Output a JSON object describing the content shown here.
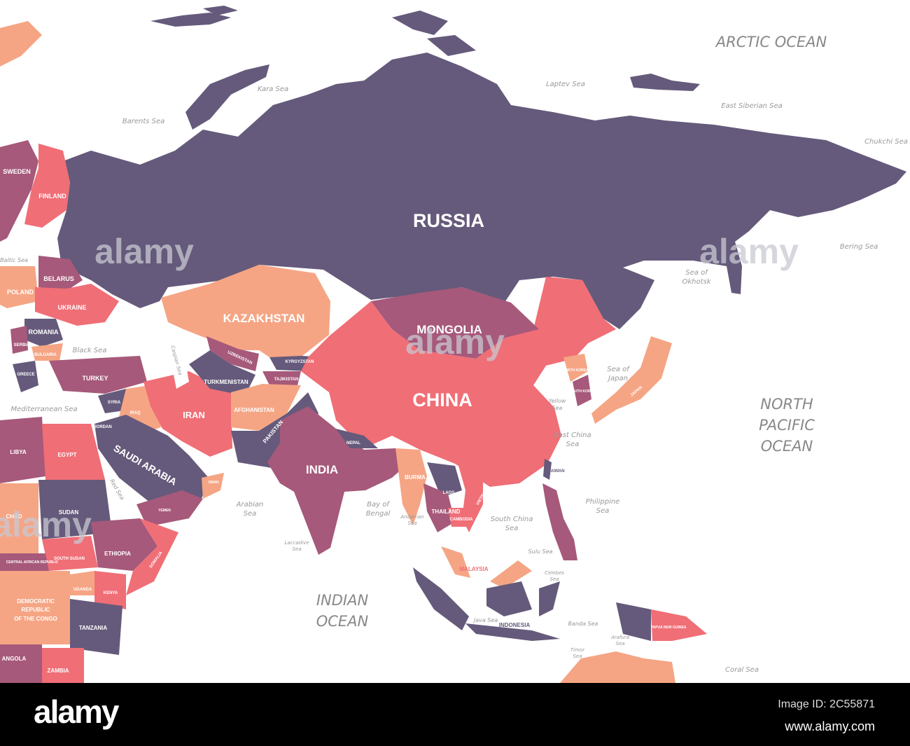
{
  "map": {
    "colors": {
      "dark_purple": "#655a7b",
      "mauve": "#a6597a",
      "salmon": "#f06e76",
      "peach": "#f5a584",
      "water": "#ffffff"
    },
    "countries": {
      "russia": "RUSSIA",
      "kazakhstan": "KAZAKHSTAN",
      "mongolia": "MONGOLIA",
      "china": "CHINA",
      "india": "INDIA",
      "iran": "IRAN",
      "saudi_arabia": "SAUDI ARABIA",
      "turkey": "TURKEY",
      "sweden": "SWEDEN",
      "finland": "FINLAND",
      "belarus": "BELARUS",
      "poland": "POLAND",
      "ukraine": "UKRAINE",
      "romania": "ROMANIA",
      "bulgaria": "BULGARIA",
      "serbia": "SERBIA",
      "greece": "GREECE",
      "syria": "SYRIA",
      "iraq": "IRAQ",
      "jordan": "JORDAN",
      "uzbekistan": "UZBEKISTAN",
      "turkmenistan": "TURKMENISTAN",
      "kyrgyzstan": "KYRGYZSTAN",
      "tajikistan": "TAJIKISTAN",
      "afghanistan": "AFGHANISTAN",
      "pakistan": "PAKISTAN",
      "nepal": "NEPAL",
      "burma": "BURMA",
      "laos": "LAOS",
      "thailand": "THAILAND",
      "vietnam": "VIETNAM",
      "cambodia": "CAMBODIA",
      "malaysia": "MALAYSIA",
      "indonesia": "INDONESIA",
      "philippines": "PHILIPPINES",
      "taiwan": "TAIWAN",
      "japan": "JAPAN",
      "north_korea": "NORTH KOREA",
      "south_korea": "SOUTH KOREA",
      "papua_new_guinea": "PAPUA NEW GUINEA",
      "libya": "LIBYA",
      "egypt": "EGYPT",
      "sudan": "SUDAN",
      "chad": "CHAD",
      "south_sudan": "SOUTH SUDAN",
      "central_african_republic": "CENTRAL AFRICAN REPUBLIC",
      "ethiopia": "ETHIOPIA",
      "somalia": "SOMALIA",
      "uganda": "UGANDA",
      "kenya": "KENYA",
      "drc_line1": "DEMOCRATIC",
      "drc_line2": "REPUBLIC",
      "drc_line3": "OF THE CONGO",
      "tanzania": "TANZANIA",
      "angola": "ANGOLA",
      "zambia": "ZAMBIA",
      "yemen": "YEMEN",
      "oman": "OMAN"
    },
    "seas": {
      "arctic_ocean": "ARCTIC OCEAN",
      "kara_sea": "Kara Sea",
      "laptev_sea": "Laptev Sea",
      "barents_sea": "Barents Sea",
      "east_siberian_sea": "East Siberian Sea",
      "chukchi_sea": "Chukchi Sea",
      "bering_sea": "Bering Sea",
      "sea_of_okhotsk_1": "Sea of",
      "sea_of_okhotsk_2": "Okhotsk",
      "sea_of_japan_1": "Sea of",
      "sea_of_japan_2": "Japan",
      "north_pacific_1": "NORTH",
      "north_pacific_2": "PACIFIC",
      "north_pacific_3": "OCEAN",
      "baltic_sea": "Baltic Sea",
      "black_sea": "Black Sea",
      "caspian_sea": "Caspian Sea",
      "mediterranean_sea": "Mediterranean Sea",
      "red_sea": "Red Sea",
      "arabian_sea_1": "Arabian",
      "arabian_sea_2": "Sea",
      "bay_of_bengal_1": "Bay of",
      "bay_of_bengal_2": "Bengal",
      "yellow_sea_1": "Yellow",
      "yellow_sea_2": "Sea",
      "east_china_sea_1": "East China",
      "east_china_sea_2": "Sea",
      "philippine_sea_1": "Philippine",
      "philippine_sea_2": "Sea",
      "south_china_sea_1": "South China",
      "south_china_sea_2": "Sea",
      "andaman_sea_1": "Andaman",
      "andaman_sea_2": "Sea",
      "laccadive_sea_1": "Laccadive",
      "laccadive_sea_2": "Sea",
      "sulu_sea": "Sulu Sea",
      "celebes_sea_1": "Celebes",
      "celebes_sea_2": "Sea",
      "java_sea": "Java Sea",
      "banda_sea": "Banda Sea",
      "arafura_sea_1": "Arafura",
      "arafura_sea_2": "Sea",
      "timor_sea_1": "Timor",
      "timor_sea_2": "Sea",
      "coral_sea": "Coral Sea",
      "indian_ocean_1": "INDIAN",
      "indian_ocean_2": "OCEAN"
    },
    "watermark": "alamy"
  },
  "footer": {
    "logo": "alamy",
    "image_id": "Image ID: 2C55871",
    "url": "www.alamy.com"
  }
}
